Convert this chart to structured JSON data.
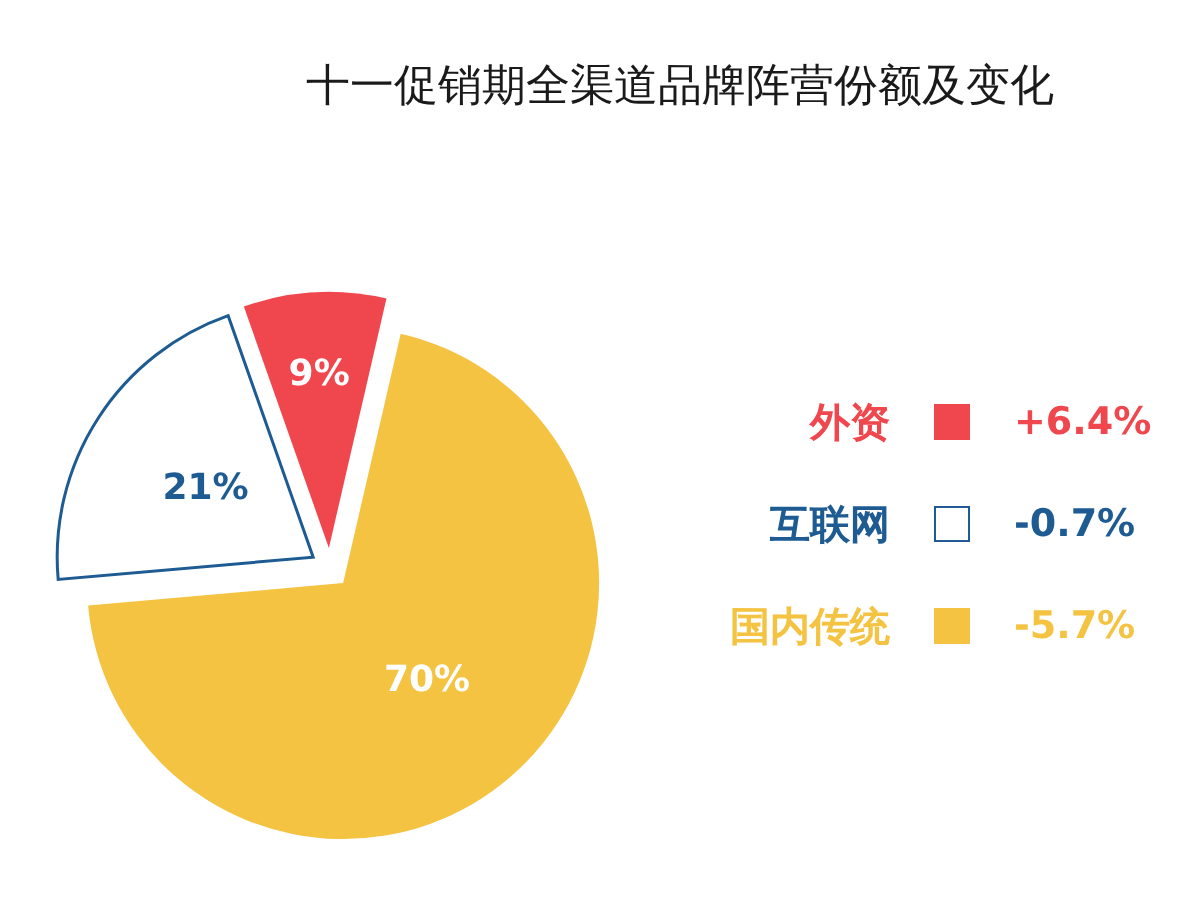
{
  "chart_data": {
    "type": "pie",
    "title": "十一促销期全渠道品牌阵营份额及变化",
    "categories": [
      "外资",
      "互联网",
      "国内传统"
    ],
    "values": [
      9,
      21,
      70
    ],
    "colors": [
      "#f0464e",
      "#ffffff",
      "#f4c342"
    ],
    "value_labels": [
      "9%",
      "21%",
      "70%"
    ],
    "annotations": [
      "+6.4%",
      "-0.7%",
      "-5.7%"
    ],
    "legend": "right"
  }
}
